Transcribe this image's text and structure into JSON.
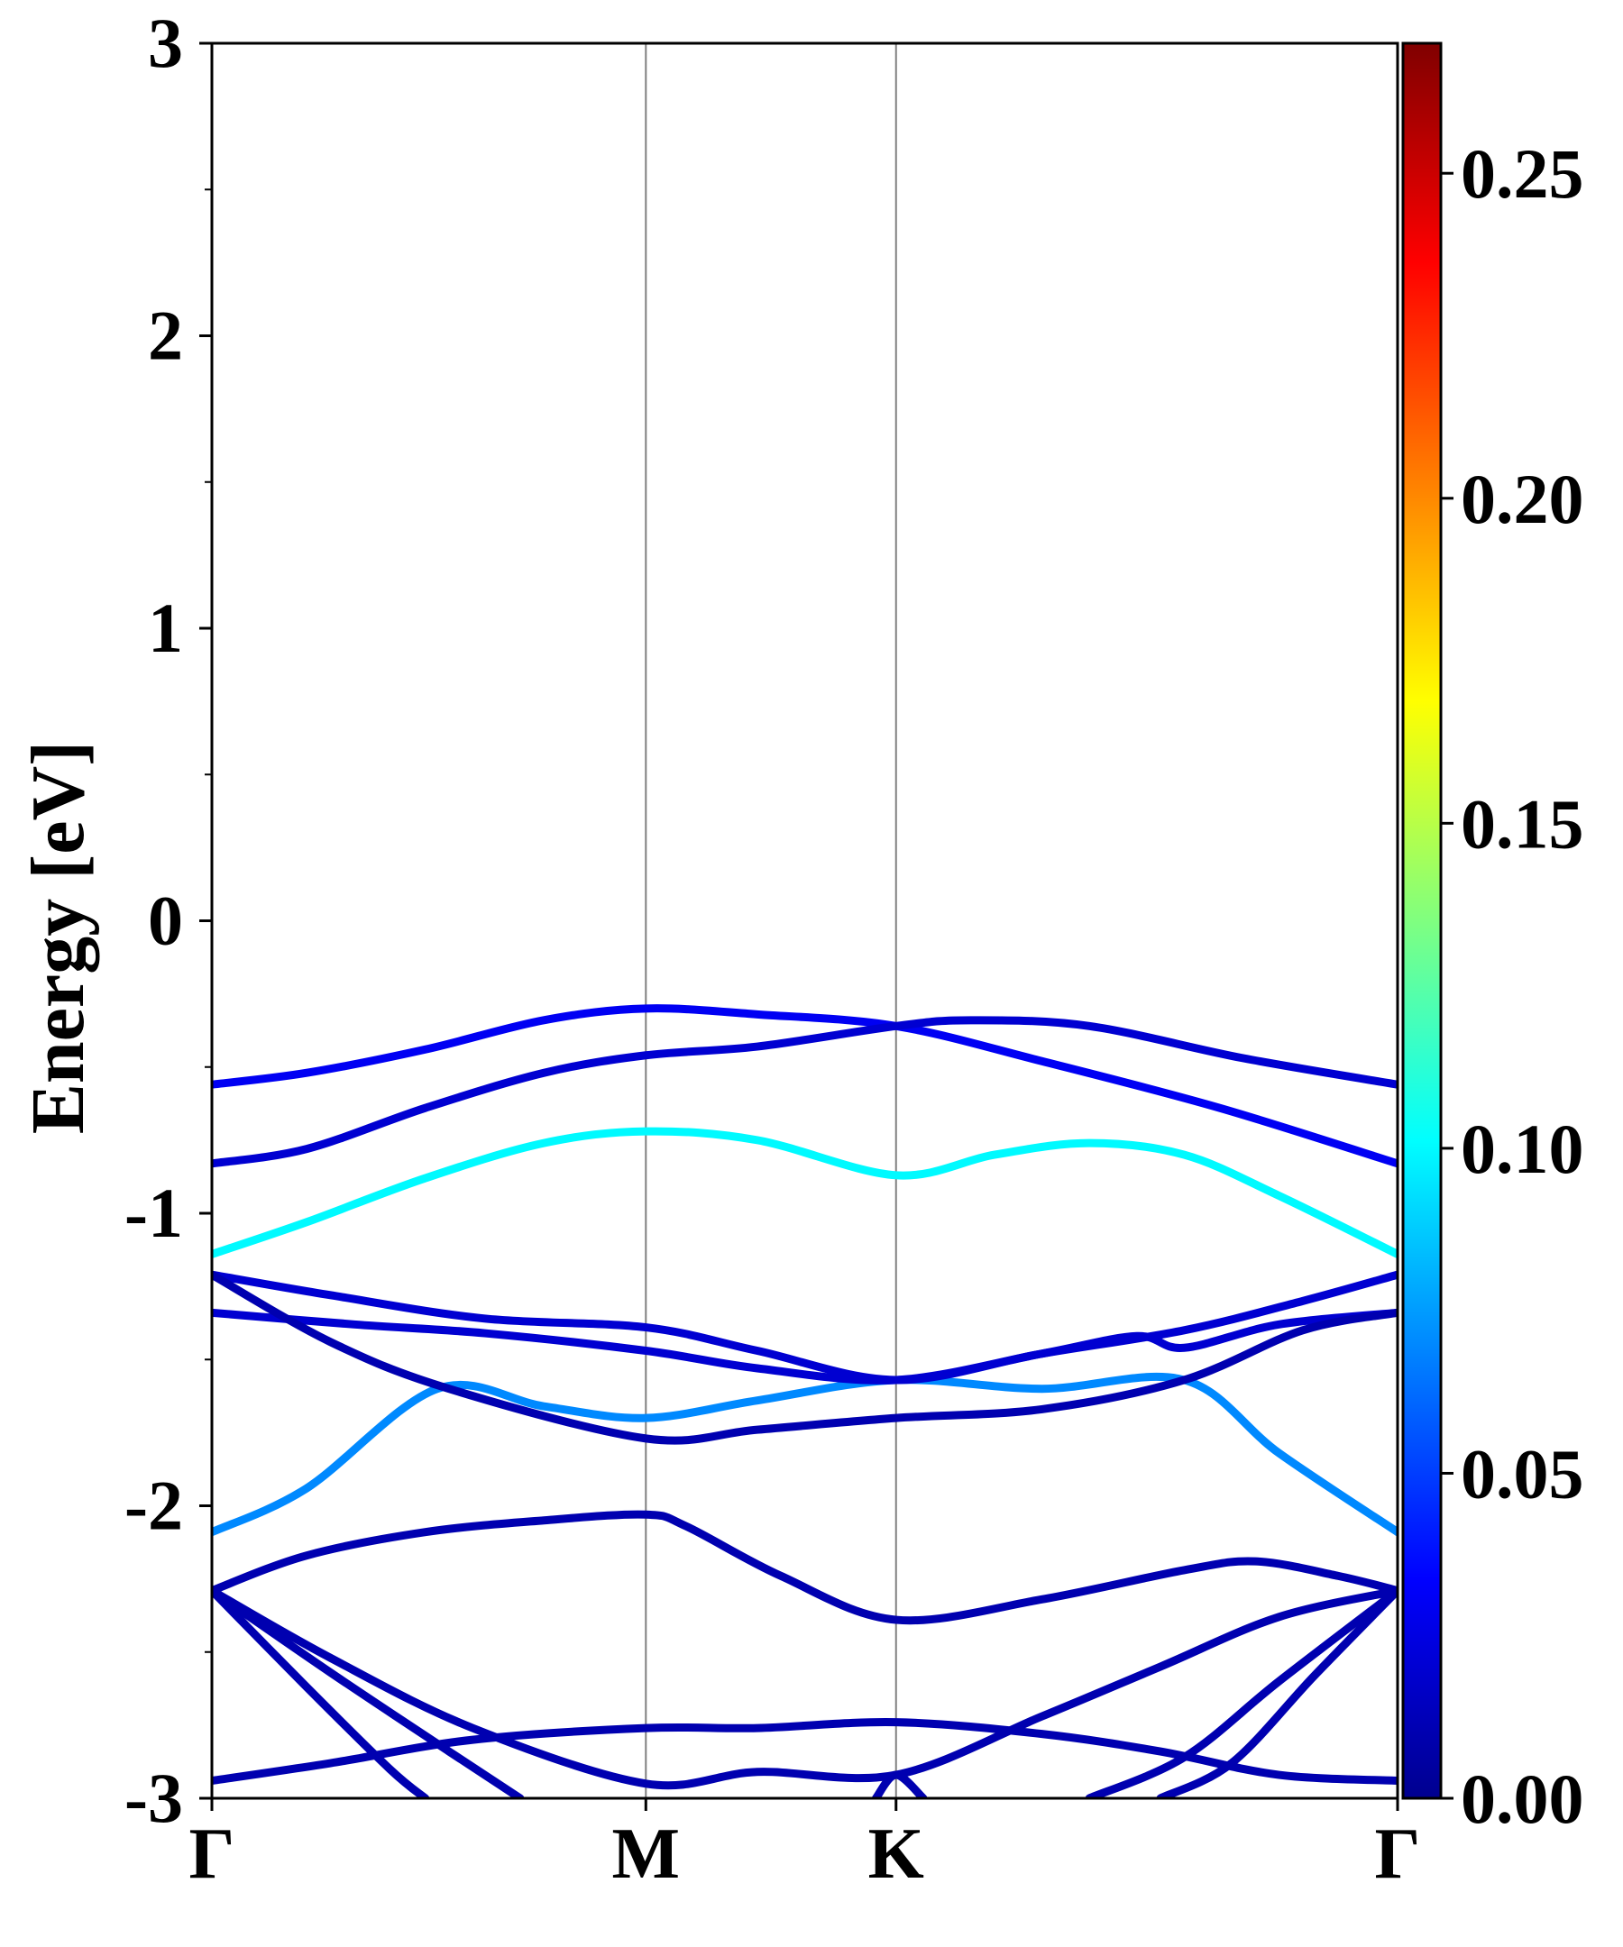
{
  "chart_data": {
    "type": "line",
    "title": "",
    "xlabel": "",
    "ylabel": "Energy [eV]",
    "ylim": [
      -3,
      3
    ],
    "yticks": [
      "3",
      "2",
      "1",
      "0",
      "-1",
      "-2",
      "-3"
    ],
    "yticks_values": [
      3,
      2,
      1,
      0,
      -1,
      -2,
      -3
    ],
    "minor_y_step": 0.5,
    "high_symmetry_points": [
      {
        "label": "Γ",
        "x": 0
      },
      {
        "label": "M",
        "x": 0.366
      },
      {
        "label": "K",
        "x": 0.577
      },
      {
        "label": "Γ",
        "x": 1
      }
    ],
    "colorbar": {
      "colormap": "jet",
      "range": [
        0,
        0.27
      ],
      "tick_labels": [
        "0.00",
        "0.05",
        "0.10",
        "0.15",
        "0.20",
        "0.25"
      ],
      "tick_values": [
        0,
        0.05,
        0.1,
        0.15,
        0.2,
        0.25
      ]
    },
    "series": [
      {
        "color_value": 0.03,
        "points": [
          [
            0,
            -0.56
          ],
          [
            0.08,
            -0.52
          ],
          [
            0.18,
            -0.44
          ],
          [
            0.28,
            -0.34
          ],
          [
            0.366,
            -0.3
          ],
          [
            0.46,
            -0.32
          ],
          [
            0.577,
            -0.36
          ],
          [
            0.7,
            -0.48
          ],
          [
            0.85,
            -0.64
          ],
          [
            1,
            -0.83
          ]
        ]
      },
      {
        "color_value": 0.02,
        "points": [
          [
            0,
            -0.83
          ],
          [
            0.08,
            -0.78
          ],
          [
            0.18,
            -0.64
          ],
          [
            0.28,
            -0.52
          ],
          [
            0.366,
            -0.46
          ],
          [
            0.46,
            -0.43
          ],
          [
            0.577,
            -0.36
          ],
          [
            0.64,
            -0.34
          ],
          [
            0.74,
            -0.36
          ],
          [
            0.87,
            -0.47
          ],
          [
            1,
            -0.56
          ]
        ]
      },
      {
        "color_value": 0.1,
        "points": [
          [
            0,
            -1.14
          ],
          [
            0.08,
            -1.03
          ],
          [
            0.18,
            -0.88
          ],
          [
            0.28,
            -0.76
          ],
          [
            0.366,
            -0.72
          ],
          [
            0.46,
            -0.75
          ],
          [
            0.577,
            -0.87
          ],
          [
            0.66,
            -0.8
          ],
          [
            0.74,
            -0.76
          ],
          [
            0.82,
            -0.8
          ],
          [
            0.9,
            -0.94
          ],
          [
            1,
            -1.14
          ]
        ]
      },
      {
        "color_value": 0.07,
        "points": [
          [
            0,
            -2.09
          ],
          [
            0.08,
            -1.94
          ],
          [
            0.19,
            -1.6
          ],
          [
            0.28,
            -1.66
          ],
          [
            0.366,
            -1.7
          ],
          [
            0.46,
            -1.64
          ],
          [
            0.577,
            -1.57
          ],
          [
            0.7,
            -1.6
          ],
          [
            0.82,
            -1.57
          ],
          [
            0.9,
            -1.82
          ],
          [
            1,
            -2.09
          ]
        ]
      },
      {
        "color_value": 0.02,
        "points": [
          [
            0,
            -1.21
          ],
          [
            0.1,
            -1.28
          ],
          [
            0.23,
            -1.36
          ],
          [
            0.366,
            -1.39
          ],
          [
            0.46,
            -1.47
          ],
          [
            0.577,
            -1.57
          ],
          [
            0.7,
            -1.48
          ],
          [
            0.82,
            -1.4
          ],
          [
            0.92,
            -1.3
          ],
          [
            1,
            -1.21
          ]
        ]
      },
      {
        "color_value": 0.02,
        "points": [
          [
            0,
            -1.34
          ],
          [
            0.12,
            -1.38
          ],
          [
            0.23,
            -1.41
          ],
          [
            0.366,
            -1.47
          ],
          [
            0.46,
            -1.53
          ],
          [
            0.577,
            -1.57
          ],
          [
            0.7,
            -1.48
          ],
          [
            0.78,
            -1.42
          ],
          [
            0.82,
            -1.46
          ],
          [
            0.9,
            -1.38
          ],
          [
            1,
            -1.34
          ]
        ]
      },
      {
        "color_value": 0.01,
        "points": [
          [
            0,
            -1.21
          ],
          [
            0.1,
            -1.44
          ],
          [
            0.2,
            -1.6
          ],
          [
            0.366,
            -1.77
          ],
          [
            0.46,
            -1.74
          ],
          [
            0.577,
            -1.7
          ],
          [
            0.7,
            -1.67
          ],
          [
            0.82,
            -1.57
          ],
          [
            0.92,
            -1.4
          ],
          [
            1,
            -1.34
          ]
        ]
      },
      {
        "color_value": 0.01,
        "points": [
          [
            0,
            -2.29
          ],
          [
            0.08,
            -2.17
          ],
          [
            0.18,
            -2.09
          ],
          [
            0.28,
            -2.05
          ],
          [
            0.366,
            -2.03
          ],
          [
            0.4,
            -2.07
          ],
          [
            0.48,
            -2.24
          ],
          [
            0.577,
            -2.39
          ],
          [
            0.7,
            -2.32
          ],
          [
            0.82,
            -2.22
          ],
          [
            0.88,
            -2.19
          ],
          [
            0.95,
            -2.24
          ],
          [
            1,
            -2.29
          ]
        ]
      },
      {
        "color_value": 0.01,
        "points": [
          [
            0,
            -2.94
          ],
          [
            0.1,
            -2.88
          ],
          [
            0.22,
            -2.8
          ],
          [
            0.366,
            -2.76
          ],
          [
            0.46,
            -2.76
          ],
          [
            0.577,
            -2.74
          ],
          [
            0.7,
            -2.78
          ],
          [
            0.8,
            -2.84
          ],
          [
            0.9,
            -2.92
          ],
          [
            1,
            -2.94
          ]
        ]
      },
      {
        "color_value": 0.01,
        "points": [
          [
            0,
            -2.29
          ],
          [
            0.1,
            -2.52
          ],
          [
            0.22,
            -2.76
          ],
          [
            0.366,
            -2.95
          ],
          [
            0.46,
            -2.91
          ],
          [
            0.577,
            -2.92
          ],
          [
            0.7,
            -2.72
          ],
          [
            0.8,
            -2.55
          ],
          [
            0.9,
            -2.38
          ],
          [
            1,
            -2.29
          ]
        ]
      },
      {
        "color_value": 0.01,
        "points": [
          [
            0,
            -2.29
          ],
          [
            0.1,
            -2.57
          ],
          [
            0.2,
            -2.84
          ],
          [
            0.26,
            -3.0
          ]
        ]
      },
      {
        "color_value": 0.01,
        "points": [
          [
            0,
            -2.29
          ],
          [
            0.08,
            -2.62
          ],
          [
            0.15,
            -2.9
          ],
          [
            0.18,
            -3.0
          ]
        ]
      },
      {
        "color_value": 0.01,
        "points": [
          [
            0.56,
            -3.0
          ],
          [
            0.577,
            -2.92
          ],
          [
            0.6,
            -3.0
          ]
        ]
      },
      {
        "color_value": 0.01,
        "points": [
          [
            0.74,
            -3.0
          ],
          [
            0.82,
            -2.86
          ],
          [
            0.9,
            -2.6
          ],
          [
            1,
            -2.29
          ]
        ]
      },
      {
        "color_value": 0.01,
        "points": [
          [
            0.8,
            -3.0
          ],
          [
            0.86,
            -2.88
          ],
          [
            0.93,
            -2.58
          ],
          [
            1,
            -2.29
          ]
        ]
      }
    ]
  }
}
